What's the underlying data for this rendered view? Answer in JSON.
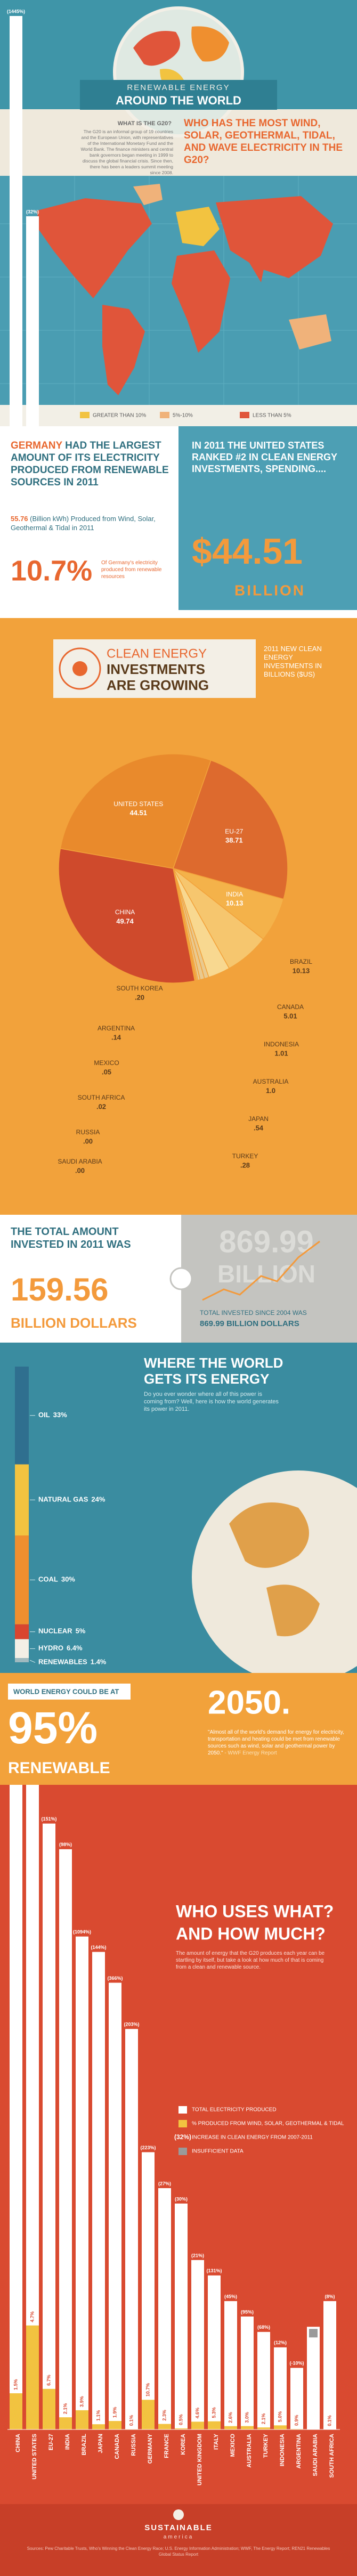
{
  "header": {
    "title_top": "RENEWABLE ENERGY",
    "title_bottom": "AROUND THE WORLD",
    "g20_heading": "WHAT IS THE G20?",
    "g20_text": "The G20 is an informal group of 19 countries and the European Union, with representatives of the International Monetary Fund and the World Bank. The finance ministers and central bank governors began meeting in 1999 to discuss the global financial crisis. Since then, there has been a leaders summit meeting since 2008.",
    "question": "WHO HAS THE MOST WIND, SOLAR, GEOTHERMAL, TIDAL, AND WAVE ELECTRICITY IN THE G20?"
  },
  "map": {
    "legend": [
      "GREATER THAN 10%",
      "5%-10%",
      "LESS THAN 5%"
    ],
    "legend_colors": [
      "#f2c340",
      "#f0b27a",
      "#e0553a"
    ]
  },
  "germany": {
    "lead": "GERMANY",
    "headline": "HAD THE LARGEST AMOUNT OF ITS ELECTRICITY PRODUCED FROM RENEWABLE SOURCES IN 2011",
    "amount": "55.76",
    "amount_text": "(Billion kWh) Produced from Wind, Solar, Geothermal & Tidal in 2011",
    "share": "10.7%",
    "share_text": "Of Germany's electricity produced from renewable resources"
  },
  "united_states": {
    "headline": "IN 2011 THE UNITED STATES RANKED #2 IN CLEAN ENERGY INVESTMENTS, SPENDING....",
    "amount": "$44.51",
    "unit": "BILLION"
  },
  "totals": {
    "heading": "THE TOTAL AMOUNT INVESTED IN 2011 WAS",
    "amount": "159.56",
    "unit": "BILLION DOLLARS",
    "since_big": "869.99",
    "since_big_unit": "BILLION",
    "since_text": "TOTAL INVESTED SINCE 2004 WAS",
    "since_amount": "869.99 BILLION DOLLARS"
  },
  "forecast": {
    "lead": "WORLD ENERGY COULD BE AT",
    "share": "95%",
    "unit": "RENEWABLE",
    "year": "2050.",
    "quote": "\"Almost all of the world's demand for energy for electricity, transportation and heating could be met from renewable sources such as wind, solar and geothermal power by 2050.\"",
    "source": "- WWF Energy Report"
  },
  "footer": {
    "brand": "SUSTAINABLE",
    "brand_sub": "america",
    "sources": "Sources: Pew Charitable Trusts, Who's Winning the Clean Energy Race; U.S. Energy Information Administration; WWF, The Energy Report; REN21 Renewables Global Status Report"
  },
  "chart_data": [
    {
      "type": "pie",
      "title": [
        "CLEAN ENERGY",
        "INVESTMENTS",
        "ARE GROWING"
      ],
      "subtitle": "2011 NEW CLEAN ENERGY INVESTMENTS IN BILLIONS ($US)",
      "categories": [
        "UNITED STATES",
        "EU-27",
        "INDIA",
        "BRAZIL",
        "CANADA",
        "INDONESIA",
        "AUSTRALIA",
        "JAPAN",
        "TURKEY",
        "SAUDI ARABIA",
        "RUSSIA",
        "SOUTH AFRICA",
        "MEXICO",
        "ARGENTINA",
        "SOUTH KOREA",
        "CHINA"
      ],
      "values": [
        44.51,
        38.71,
        10.13,
        10.13,
        5.01,
        1.01,
        1.0,
        0.54,
        0.28,
        0,
        0,
        0.02,
        0.05,
        0.14,
        0.2,
        49.74
      ],
      "value_labels": [
        "44.51",
        "38.71",
        "10.13",
        "10.13",
        "5.01",
        "1.01",
        "1.0",
        ".54",
        ".28",
        ".00",
        ".00",
        ".02",
        ".05",
        ".14",
        ".20",
        "49.74"
      ],
      "colors": [
        "#e98a2c",
        "#dd6a2e",
        "#f4b24a",
        "#f6c66e",
        "#f8d890",
        "#e9c98f",
        "#e9c98f",
        "#e9c98f",
        "#e9c98f",
        "#e9c98f",
        "#e9c98f",
        "#e9c98f",
        "#e9c98f",
        "#e9c98f",
        "#e9c98f",
        "#cf4a2c"
      ]
    },
    {
      "type": "stacked_bar",
      "title": [
        "WHERE THE WORLD",
        "GETS ITS ENERGY"
      ],
      "description": "Do you ever wonder where all of this power is coming from? Well, here is how the world generates its power in 2011.",
      "categories": [
        "OIL",
        "NATURAL GAS",
        "COAL",
        "NUCLEAR",
        "HYDRO",
        "RENEWABLES"
      ],
      "values": [
        33,
        24,
        30,
        5,
        6.4,
        1.4
      ],
      "value_labels": [
        "33%",
        "24%",
        "30%",
        "5%",
        "6.4%",
        "1.4%"
      ],
      "colors": [
        "#2f6f8f",
        "#f2c340",
        "#ef8f2f",
        "#d9452f",
        "#f3efe6",
        "#9fb9bf"
      ]
    },
    {
      "type": "bar",
      "title": [
        "WHO USES WHAT?",
        "AND HOW MUCH?"
      ],
      "description": "The amount of energy that the G20 produces each year can be startling by itself, but take a look at how much of that is coming from a clean and renewable source.",
      "categories": [
        "CHINA",
        "UNITED STATES",
        "EU-27",
        "INDIA",
        "BRAZIL",
        "JAPAN",
        "CANADA",
        "RUSSIA",
        "GERMANY",
        "FRANCE",
        "KOREA",
        "UNITED KINGDOM",
        "ITALY",
        "MEXICO",
        "AUSTRALIA",
        "TURKEY",
        "INDONESIA",
        "ARGENTINA",
        "SAUDI ARABIA",
        "SOUTH AFRICA"
      ],
      "series": [
        {
          "name": "TOTAL ELECTRICITY PRODUCED",
          "color": "#ffffff",
          "values": [
            4700,
            4310,
            1180,
            1130,
            960,
            930,
            870,
            780,
            540,
            470,
            440,
            330,
            300,
            250,
            220,
            190,
            160,
            120,
            200,
            250
          ]
        },
        {
          "name": "% PRODUCED FROM WIND, SOLAR, GEOTHERMAL & TIDAL",
          "color": "#f2c340",
          "values": [
            1.5,
            4.7,
            6.7,
            2.1,
            3.9,
            1.1,
            1.9,
            0.1,
            10.7,
            2.3,
            0.5,
            4.6,
            5.3,
            2.6,
            3.0,
            2.1,
            5.0,
            0.9,
            null,
            0.1
          ],
          "value_labels": [
            "1.5%",
            "4.7%",
            "6.7%",
            "2.1%",
            "3.9%",
            "1.1%",
            "1.9%",
            "0.1%",
            "10.7%",
            "2.3%",
            "0.5%",
            "4.6%",
            "5.3%",
            "2.6%",
            "3.0%",
            "2.1%",
            "5.0%",
            "0.9%",
            null,
            "0.1%"
          ]
        },
        {
          "name": "INCREASE IN CLEAN ENERGY FROM 2007-2011",
          "color": "#ffffff",
          "values": [
            1445,
            32,
            151,
            98,
            1094,
            144,
            366,
            203,
            223,
            27,
            30,
            21,
            131,
            45,
            95,
            68,
            12,
            -10,
            null,
            8
          ],
          "value_labels": [
            "(1445%)",
            "(32%)",
            "(151%)",
            "(98%)",
            "(1094%)",
            "(144%)",
            "(366%)",
            "(203%)",
            "(223%)",
            "(27%)",
            "(30%)",
            "(21%)",
            "(131%)",
            "(45%)",
            "(95%)",
            "(68%)",
            "(12%)",
            "(-10%)",
            null,
            "(8%)"
          ]
        }
      ],
      "insufficient_label": "INSUFFICIENT DATA",
      "insufficient_color": "#9a9a9a"
    }
  ]
}
